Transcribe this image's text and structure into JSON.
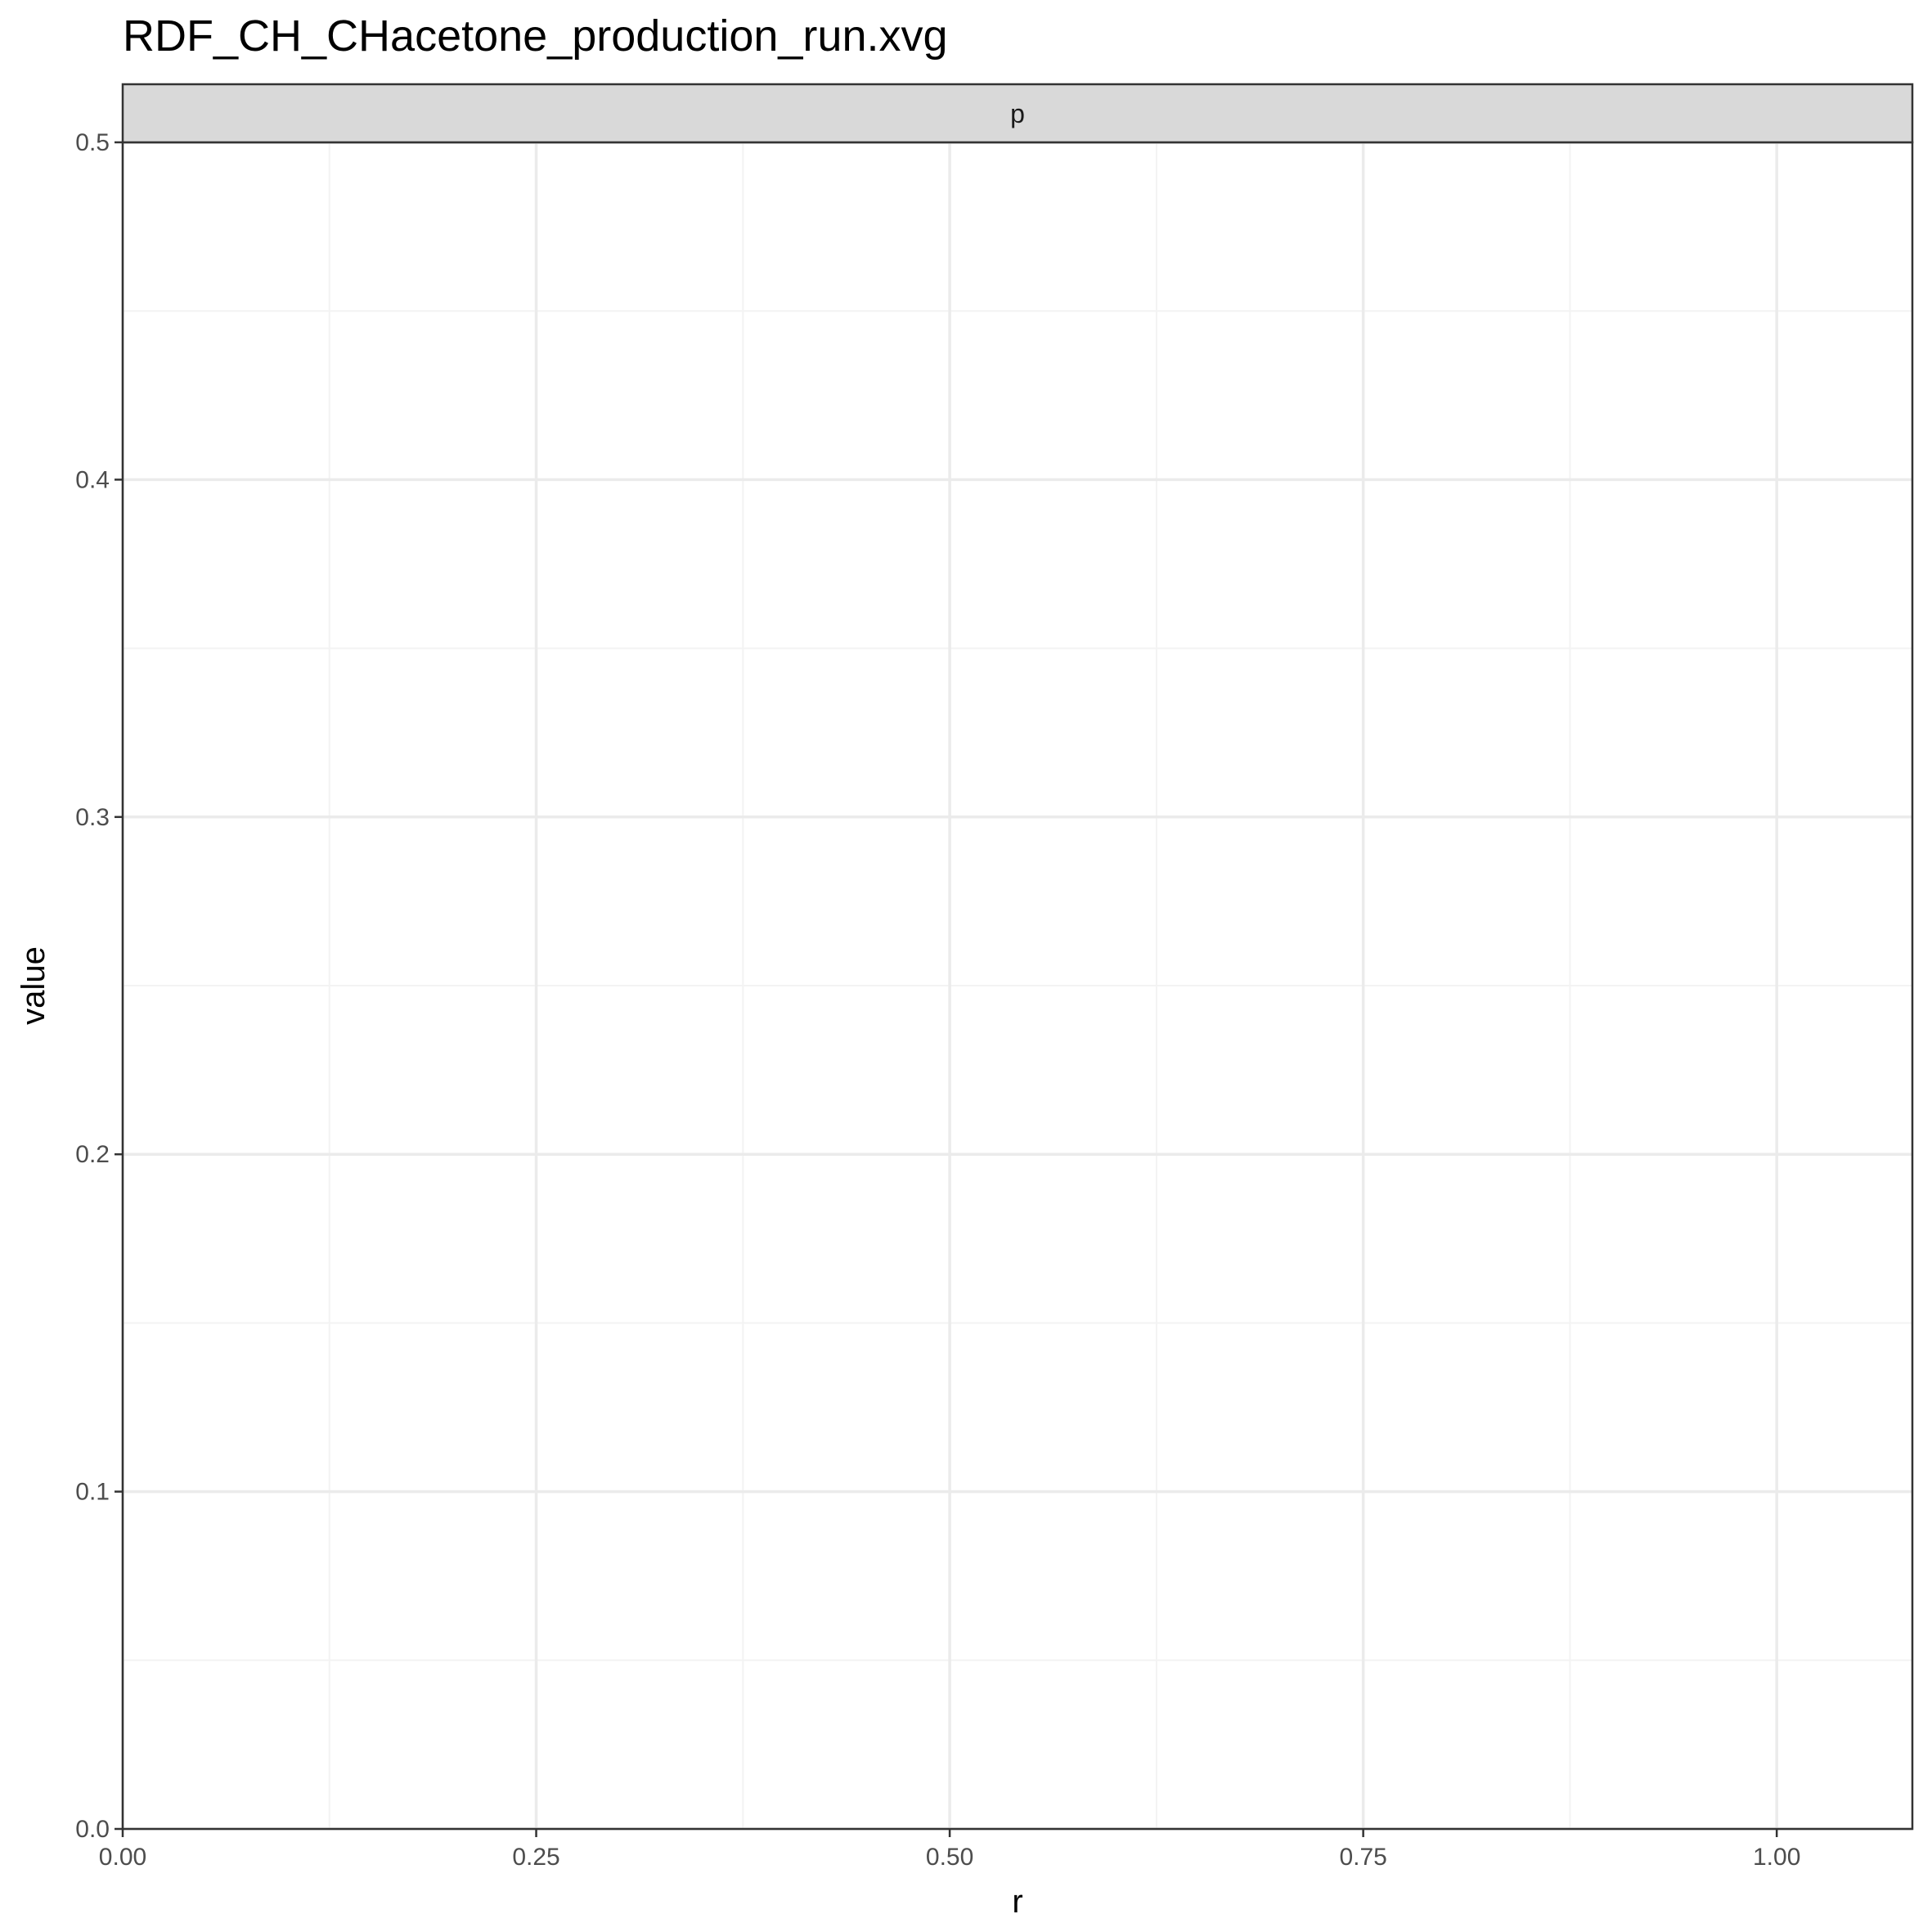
{
  "chart_data": {
    "type": "line",
    "title": "RDF_CH_CHacetone_production_run.xvg",
    "facet_label": "p",
    "xlabel": "r",
    "ylabel": "value",
    "xlim": [
      0,
      1.082
    ],
    "ylim": [
      0,
      0.5
    ],
    "x_ticks": [
      0,
      0.25,
      0.5,
      0.75,
      1.0
    ],
    "x_tick_labels": [
      "0.00",
      "0.25",
      "0.50",
      "0.75",
      "1.00"
    ],
    "y_ticks": [
      0,
      0.1,
      0.2,
      0.3,
      0.4,
      0.5
    ],
    "y_tick_labels": [
      "0.0",
      "0.1",
      "0.2",
      "0.3",
      "0.4",
      "0.5"
    ],
    "x_minor_ticks": [
      0.125,
      0.375,
      0.625,
      0.875
    ],
    "y_minor_ticks": [
      0.05,
      0.15,
      0.25,
      0.35,
      0.45
    ],
    "grid": true,
    "series": [
      {
        "values": []
      }
    ],
    "colors": {
      "panel_border": "#333333",
      "grid_major": "#ebebeb",
      "grid_minor": "#f3f3f3",
      "strip_fill": "#d9d9d9",
      "tick_text": "#4d4d4d",
      "line": "#000000"
    }
  }
}
